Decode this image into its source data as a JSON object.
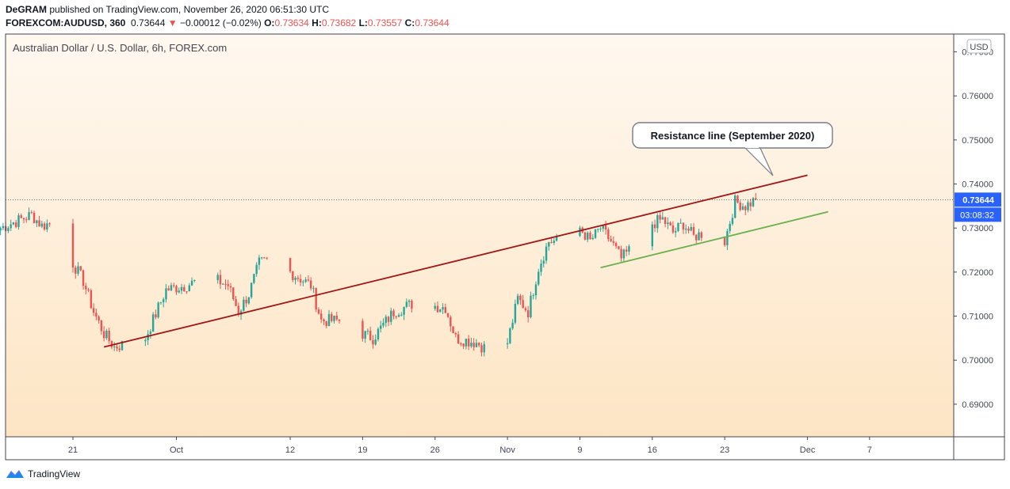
{
  "header": {
    "author": "DeGRAM",
    "published_text": "published on TradingView.com, November 26, 2020 06:51:30 UTC",
    "symbol": "FOREXCOM:AUDUSD, 360",
    "last": "0.73644",
    "change_arrow": "▼",
    "change": "−0.00012 (−0.02%)",
    "open_label": "O:",
    "open": "0.73634",
    "high_label": "H:",
    "high": "0.73682",
    "low_label": "L:",
    "low": "0.73557",
    "close_label": "C:",
    "close": "0.73644"
  },
  "footer": {
    "brand": "TradingView",
    "logo_icon": "tradingview-logo-icon"
  },
  "chart_data": {
    "type": "candlestick",
    "title": "Australian Dollar / U.S. Dollar, 6h, FOREX.com",
    "currency_badge": "USD",
    "last_price_label": "0.73644",
    "countdown_label": "03:08:32",
    "last_price": 0.73644,
    "ylim": [
      0.682,
      0.772
    ],
    "y_ticks": [
      "0.69000",
      "0.70000",
      "0.71000",
      "0.72000",
      "0.73000",
      "0.74000",
      "0.75000",
      "0.76000",
      "0.77000"
    ],
    "x_ticks": [
      {
        "label": "21",
        "date": "2020-09-21"
      },
      {
        "label": "Oct",
        "date": "2020-10-01"
      },
      {
        "label": "12",
        "date": "2020-10-12"
      },
      {
        "label": "19",
        "date": "2020-10-19"
      },
      {
        "label": "26",
        "date": "2020-10-26"
      },
      {
        "label": "Nov",
        "date": "2020-11-02"
      },
      {
        "label": "9",
        "date": "2020-11-09"
      },
      {
        "label": "16",
        "date": "2020-11-16"
      },
      {
        "label": "23",
        "date": "2020-11-23"
      },
      {
        "label": "Dec",
        "date": "2020-12-01"
      },
      {
        "label": "7",
        "date": "2020-12-07"
      }
    ],
    "colors": {
      "up": "#26a69a",
      "down": "#ef5350",
      "resistance": "#a31616",
      "support": "#6ab04c",
      "last_price_bg": "#2962ff"
    },
    "annotation": {
      "text": "Resistance line (September 2020)"
    },
    "resistance_line": {
      "from": {
        "date": "2020-09-24",
        "price": 0.703
      },
      "to": {
        "date": "2020-12-01",
        "price": 0.742
      }
    },
    "support_line": {
      "from": {
        "date": "2020-11-11",
        "price": 0.721
      },
      "to": {
        "date": "2020-12-03",
        "price": 0.7337
      }
    },
    "series": [
      {
        "anchors": [
          {
            "date": "2020-09-14",
            "close": 0.73
          },
          {
            "date": "2020-09-17",
            "close": 0.733
          },
          {
            "date": "2020-09-18",
            "close": 0.7305
          },
          {
            "date": "2020-09-20",
            "close": 0.732
          },
          {
            "date": "2020-09-21",
            "close": 0.722
          },
          {
            "date": "2020-09-22",
            "close": 0.718
          },
          {
            "date": "2020-09-23",
            "close": 0.711
          },
          {
            "date": "2020-09-24",
            "close": 0.706
          },
          {
            "date": "2020-09-25",
            "close": 0.703
          },
          {
            "date": "2020-09-28",
            "close": 0.705
          },
          {
            "date": "2020-09-30",
            "close": 0.716
          },
          {
            "date": "2020-10-02",
            "close": 0.717
          },
          {
            "date": "2020-10-04",
            "close": 0.719
          },
          {
            "date": "2020-10-06",
            "close": 0.717
          },
          {
            "date": "2020-10-07",
            "close": 0.711
          },
          {
            "date": "2020-10-08",
            "close": 0.715
          },
          {
            "date": "2020-10-09",
            "close": 0.722
          },
          {
            "date": "2020-10-10",
            "close": 0.723
          },
          {
            "date": "2020-10-12",
            "close": 0.72
          },
          {
            "date": "2020-10-14",
            "close": 0.717
          },
          {
            "date": "2020-10-15",
            "close": 0.709
          },
          {
            "date": "2020-10-17",
            "close": 0.709
          },
          {
            "date": "2020-10-19",
            "close": 0.706
          },
          {
            "date": "2020-10-20",
            "close": 0.705
          },
          {
            "date": "2020-10-22",
            "close": 0.711
          },
          {
            "date": "2020-10-24",
            "close": 0.713
          },
          {
            "date": "2020-10-27",
            "close": 0.712
          },
          {
            "date": "2020-10-28",
            "close": 0.705
          },
          {
            "date": "2020-10-30",
            "close": 0.704
          },
          {
            "date": "2020-11-01",
            "close": 0.701
          },
          {
            "date": "2020-11-02",
            "close": 0.704
          },
          {
            "date": "2020-11-03",
            "close": 0.714
          },
          {
            "date": "2020-11-04",
            "close": 0.711
          },
          {
            "date": "2020-11-05",
            "close": 0.721
          },
          {
            "date": "2020-11-06",
            "close": 0.727
          },
          {
            "date": "2020-11-08",
            "close": 0.727
          },
          {
            "date": "2020-11-09",
            "close": 0.73
          },
          {
            "date": "2020-11-10",
            "close": 0.727
          },
          {
            "date": "2020-11-11",
            "close": 0.73
          },
          {
            "date": "2020-11-12",
            "close": 0.727
          },
          {
            "date": "2020-11-13",
            "close": 0.723
          },
          {
            "date": "2020-11-15",
            "close": 0.728
          },
          {
            "date": "2020-11-16",
            "close": 0.731
          },
          {
            "date": "2020-11-17",
            "close": 0.732
          },
          {
            "date": "2020-11-18",
            "close": 0.729
          },
          {
            "date": "2020-11-19",
            "close": 0.731
          },
          {
            "date": "2020-11-20",
            "close": 0.728
          },
          {
            "date": "2020-11-22",
            "close": 0.73
          },
          {
            "date": "2020-11-23",
            "close": 0.727
          },
          {
            "date": "2020-11-24",
            "close": 0.736
          },
          {
            "date": "2020-11-25",
            "close": 0.735
          },
          {
            "date": "2020-11-26",
            "close": 0.73644
          }
        ]
      }
    ]
  }
}
